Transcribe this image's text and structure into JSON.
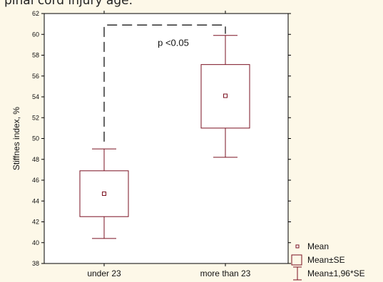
{
  "caption": "pinal cord injury age.",
  "chart_data": {
    "type": "box",
    "ylabel": "Stiffnes index, %",
    "ylim": [
      38,
      62
    ],
    "yticks": [
      38,
      40,
      42,
      44,
      46,
      48,
      50,
      52,
      54,
      56,
      58,
      60,
      62
    ],
    "categories": [
      "under 23",
      "more than 23"
    ],
    "series": [
      {
        "category": "under 23",
        "mean": 44.7,
        "se_low": 42.5,
        "se_high": 46.9,
        "ci_low": 40.4,
        "ci_high": 49.0
      },
      {
        "category": "more than 23",
        "mean": 54.1,
        "se_low": 51.0,
        "se_high": 57.1,
        "ci_low": 48.2,
        "ci_high": 59.9
      }
    ],
    "annotation": "p <0.05",
    "legend": [
      "Mean",
      "Mean±SE",
      "Mean±1,96*SE"
    ],
    "colors": {
      "box": "#7a1020",
      "background": "#fdf8e8",
      "axis": "#000000"
    }
  }
}
